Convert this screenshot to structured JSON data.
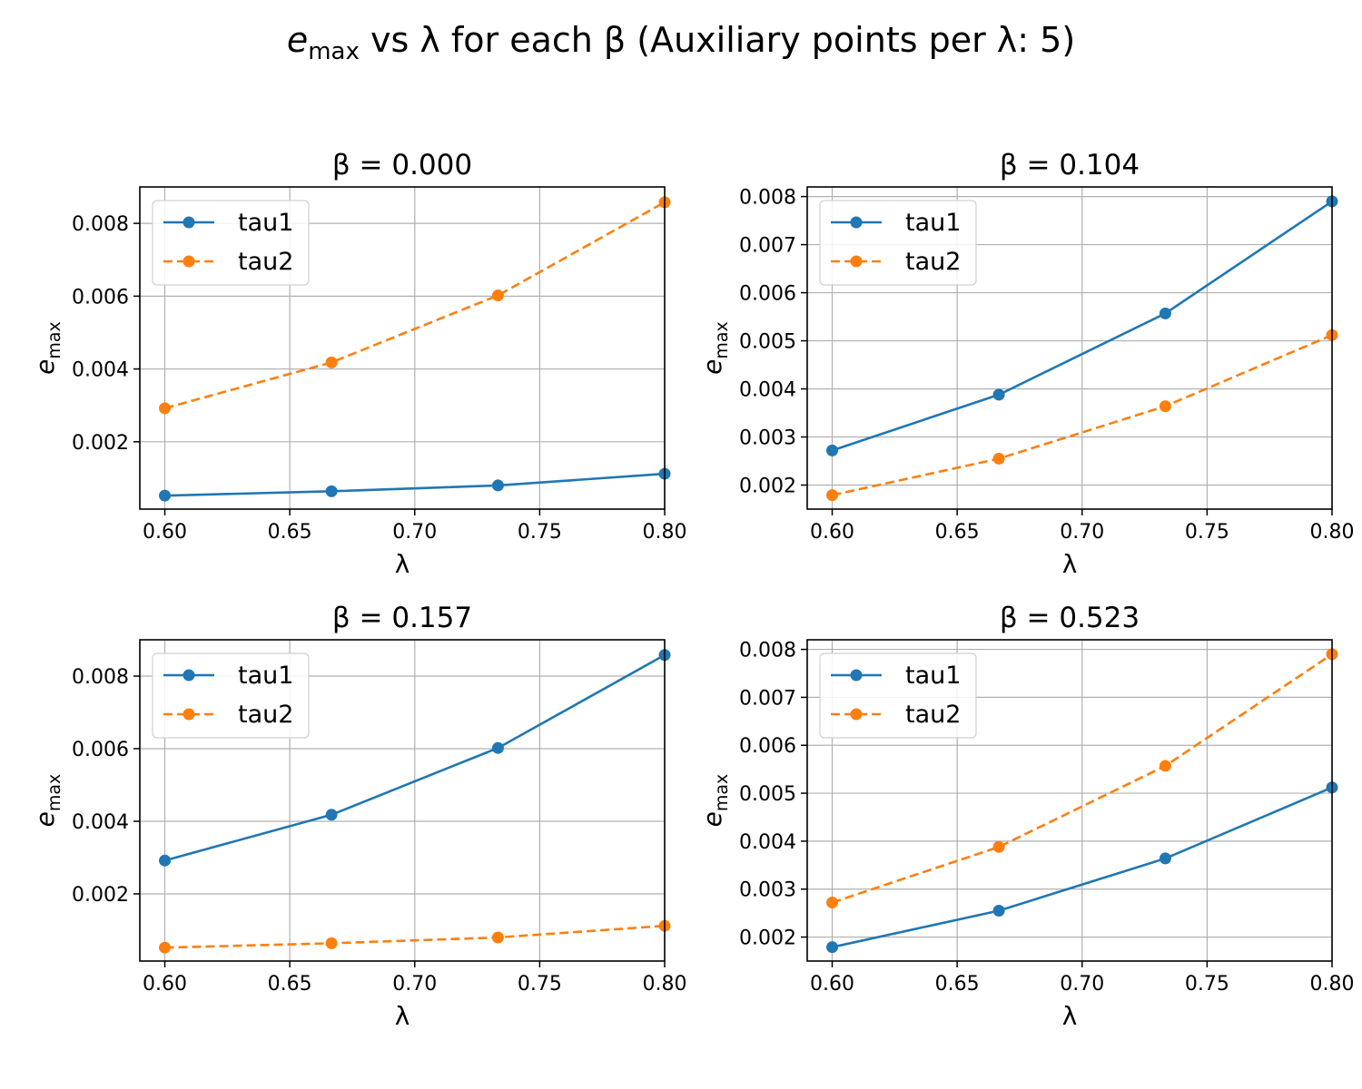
{
  "figure": {
    "title_main": "e",
    "title_sub": "max",
    "title_rest": " vs λ for each β (Auxiliary points per λ: 5)"
  },
  "chart_data": [
    {
      "type": "line",
      "title": "β = 0.000",
      "xlabel": "λ",
      "ylabel_main": "e",
      "ylabel_sub": "max",
      "x": [
        0.6,
        0.6667,
        0.7333,
        0.8
      ],
      "xlim": [
        0.59,
        0.8
      ],
      "ylim": [
        0.00015,
        0.009
      ],
      "xticks": [
        0.6,
        0.65,
        0.7,
        0.75,
        0.8
      ],
      "xtick_labels": [
        "0.60",
        "0.65",
        "0.70",
        "0.75",
        "0.80"
      ],
      "yticks": [
        0.002,
        0.004,
        0.006,
        0.008
      ],
      "ytick_labels": [
        "0.002",
        "0.004",
        "0.006",
        "0.008"
      ],
      "grid": true,
      "legend": "upper left",
      "series": [
        {
          "name": "tau1",
          "color": "#1f77b4",
          "style": "solid",
          "values": [
            0.00052,
            0.00064,
            0.0008,
            0.00112
          ]
        },
        {
          "name": "tau2",
          "color": "#ff7f0e",
          "style": "dashed",
          "values": [
            0.00292,
            0.00418,
            0.00602,
            0.00858
          ]
        }
      ]
    },
    {
      "type": "line",
      "title": "β = 0.104",
      "xlabel": "λ",
      "ylabel_main": "e",
      "ylabel_sub": "max",
      "x": [
        0.6,
        0.6667,
        0.7333,
        0.8
      ],
      "xlim": [
        0.59,
        0.8
      ],
      "ylim": [
        0.0015,
        0.0082
      ],
      "xticks": [
        0.6,
        0.65,
        0.7,
        0.75,
        0.8
      ],
      "xtick_labels": [
        "0.60",
        "0.65",
        "0.70",
        "0.75",
        "0.80"
      ],
      "yticks": [
        0.002,
        0.003,
        0.004,
        0.005,
        0.006,
        0.007,
        0.008
      ],
      "ytick_labels": [
        "0.002",
        "0.003",
        "0.004",
        "0.005",
        "0.006",
        "0.007",
        "0.008"
      ],
      "grid": true,
      "legend": "upper left",
      "series": [
        {
          "name": "tau1",
          "color": "#1f77b4",
          "style": "solid",
          "values": [
            0.00272,
            0.00388,
            0.00557,
            0.0079
          ]
        },
        {
          "name": "tau2",
          "color": "#ff7f0e",
          "style": "dashed",
          "values": [
            0.00179,
            0.00255,
            0.00364,
            0.00512
          ]
        }
      ]
    },
    {
      "type": "line",
      "title": "β = 0.157",
      "xlabel": "λ",
      "ylabel_main": "e",
      "ylabel_sub": "max",
      "x": [
        0.6,
        0.6667,
        0.7333,
        0.8
      ],
      "xlim": [
        0.59,
        0.8
      ],
      "ylim": [
        0.00015,
        0.009
      ],
      "xticks": [
        0.6,
        0.65,
        0.7,
        0.75,
        0.8
      ],
      "xtick_labels": [
        "0.60",
        "0.65",
        "0.70",
        "0.75",
        "0.80"
      ],
      "yticks": [
        0.002,
        0.004,
        0.006,
        0.008
      ],
      "ytick_labels": [
        "0.002",
        "0.004",
        "0.006",
        "0.008"
      ],
      "grid": true,
      "legend": "upper left",
      "series": [
        {
          "name": "tau1",
          "color": "#1f77b4",
          "style": "solid",
          "values": [
            0.00292,
            0.00418,
            0.00602,
            0.00858
          ]
        },
        {
          "name": "tau2",
          "color": "#ff7f0e",
          "style": "dashed",
          "values": [
            0.00052,
            0.00064,
            0.0008,
            0.00112
          ]
        }
      ]
    },
    {
      "type": "line",
      "title": "β = 0.523",
      "xlabel": "λ",
      "ylabel_main": "e",
      "ylabel_sub": "max",
      "x": [
        0.6,
        0.6667,
        0.7333,
        0.8
      ],
      "xlim": [
        0.59,
        0.8
      ],
      "ylim": [
        0.0015,
        0.0082
      ],
      "xticks": [
        0.6,
        0.65,
        0.7,
        0.75,
        0.8
      ],
      "xtick_labels": [
        "0.60",
        "0.65",
        "0.70",
        "0.75",
        "0.80"
      ],
      "yticks": [
        0.002,
        0.003,
        0.004,
        0.005,
        0.006,
        0.007,
        0.008
      ],
      "ytick_labels": [
        "0.002",
        "0.003",
        "0.004",
        "0.005",
        "0.006",
        "0.007",
        "0.008"
      ],
      "grid": true,
      "legend": "upper left",
      "series": [
        {
          "name": "tau1",
          "color": "#1f77b4",
          "style": "solid",
          "values": [
            0.00179,
            0.00255,
            0.00364,
            0.00512
          ]
        },
        {
          "name": "tau2",
          "color": "#ff7f0e",
          "style": "dashed",
          "values": [
            0.00272,
            0.00388,
            0.00557,
            0.0079
          ]
        }
      ]
    }
  ]
}
